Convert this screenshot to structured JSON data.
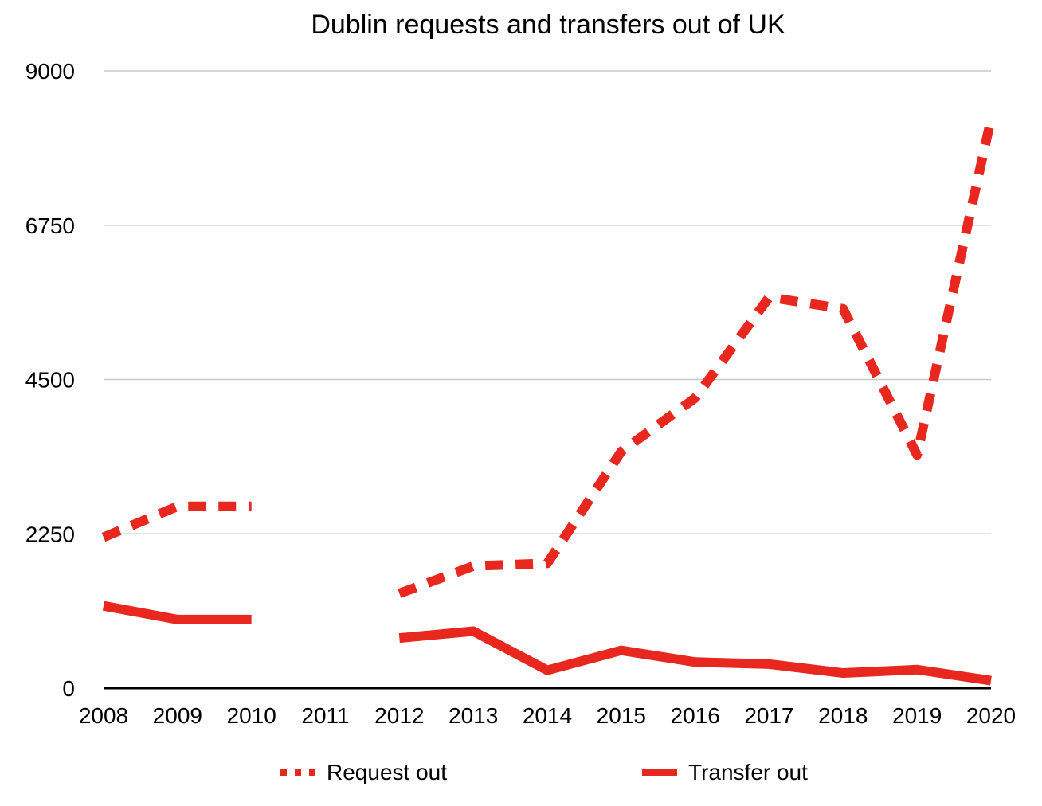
{
  "chart_data": {
    "type": "line",
    "title": "Dublin requests and transfers out of UK",
    "categories": [
      "2008",
      "2009",
      "2010",
      "2011",
      "2012",
      "2013",
      "2014",
      "2015",
      "2016",
      "2017",
      "2018",
      "2019",
      "2020"
    ],
    "yticks": [
      "0",
      "2250",
      "4500",
      "6750",
      "9000"
    ],
    "ylim": [
      0,
      9000
    ],
    "grid": true,
    "legend_position": "bottom",
    "series": [
      {
        "name": "Request out",
        "style": "dashed",
        "color": "#e8281e",
        "values": [
          2200,
          2650,
          2650,
          null,
          1380,
          1780,
          1820,
          3450,
          4230,
          5700,
          5530,
          3400,
          8300
        ]
      },
      {
        "name": "Transfer out",
        "style": "solid",
        "color": "#e8281e",
        "values": [
          1200,
          1000,
          1000,
          null,
          730,
          830,
          260,
          550,
          380,
          350,
          220,
          270,
          110
        ]
      }
    ]
  }
}
